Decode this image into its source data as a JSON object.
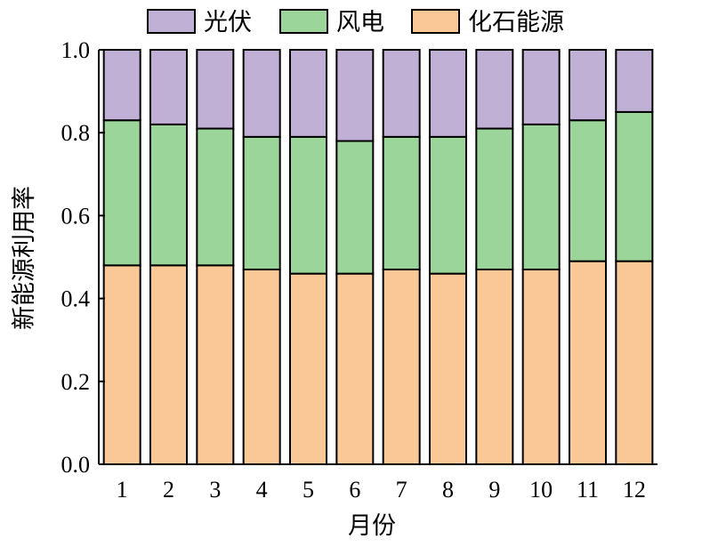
{
  "chart_data": {
    "type": "bar",
    "stacked": true,
    "categories": [
      "1",
      "2",
      "3",
      "4",
      "5",
      "6",
      "7",
      "8",
      "9",
      "10",
      "11",
      "12"
    ],
    "series": [
      {
        "name": "化石能源",
        "color": "#f9c896",
        "values": [
          0.48,
          0.48,
          0.48,
          0.47,
          0.46,
          0.46,
          0.47,
          0.46,
          0.47,
          0.47,
          0.49,
          0.49
        ]
      },
      {
        "name": "风电",
        "color": "#9cd59a",
        "values": [
          0.35,
          0.34,
          0.33,
          0.32,
          0.33,
          0.32,
          0.32,
          0.33,
          0.34,
          0.35,
          0.34,
          0.36
        ]
      },
      {
        "name": "光伏",
        "color": "#c0b0d6",
        "values": [
          0.17,
          0.18,
          0.19,
          0.21,
          0.21,
          0.22,
          0.21,
          0.21,
          0.19,
          0.18,
          0.17,
          0.15
        ]
      }
    ],
    "legend_order": [
      "光伏",
      "风电",
      "化石能源"
    ],
    "legend_position": "top",
    "xlabel": "月份",
    "ylabel": "新能源利用率",
    "ylim": [
      0,
      1.0
    ],
    "yticks": [
      "0.0",
      "0.2",
      "0.4",
      "0.6",
      "0.8",
      "1.0"
    ],
    "grid": false
  }
}
